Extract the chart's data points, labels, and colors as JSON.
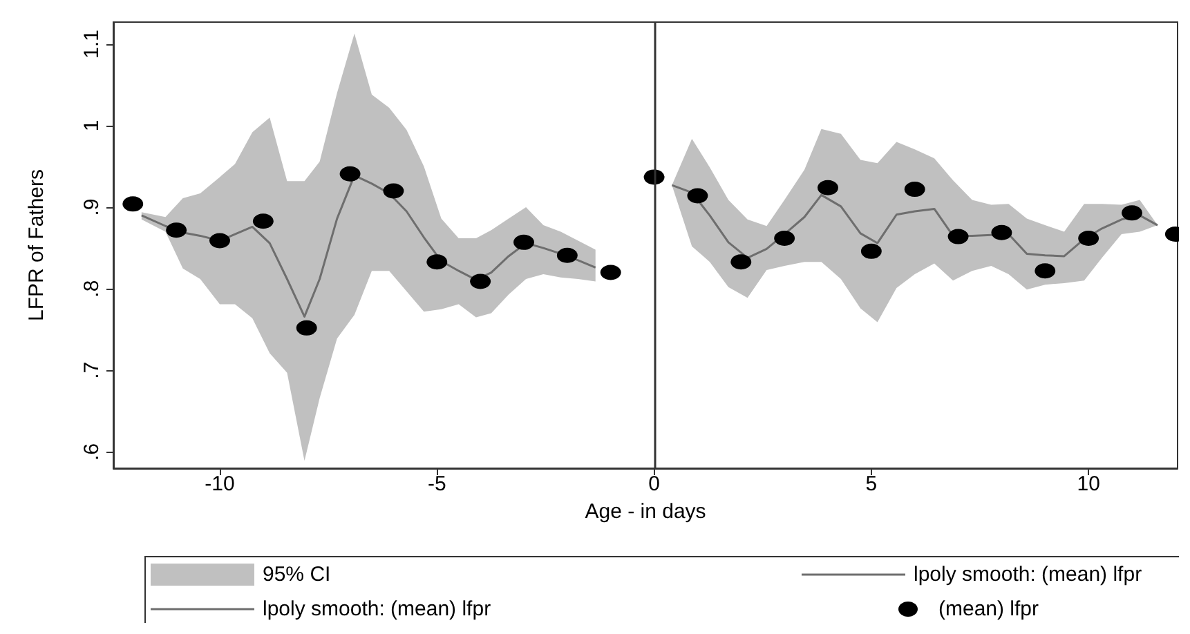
{
  "chart_data": {
    "type": "line",
    "xlabel": "Age - in days",
    "ylabel": "LFPR of Fathers",
    "xlim": [
      -12.45,
      12.05
    ],
    "xticks": [
      -10,
      -5,
      0,
      5,
      10
    ],
    "ylim": [
      0.58,
      1.127
    ],
    "yticks": [
      {
        "value": 0.6,
        "label": ".6"
      },
      {
        "value": 0.7,
        "label": ".7"
      },
      {
        "value": 0.8,
        "label": ".8"
      },
      {
        "value": 0.9,
        "label": ".9"
      },
      {
        "value": 1,
        "label": "1"
      },
      {
        "value": 1.1,
        "label": "1.1"
      }
    ],
    "grid": false,
    "legend": "bottom",
    "annotations": [
      "95% CI"
    ],
    "ref_lines": [
      {
        "axis": "x",
        "value": 0,
        "color": "#333333"
      }
    ],
    "series": [
      {
        "name": "lpoly smooth: (mean) lfpr",
        "color": "#6e6e6e",
        "x": [
          -11.8,
          -11.25,
          -10.85,
          -10.45,
          -10,
          -9.65,
          -9.25,
          -8.85,
          -8.45,
          -8.05,
          -7.7,
          -7.3,
          -6.9,
          -6.5,
          -6.1,
          -5.7,
          -5.3,
          -4.9,
          -4.5,
          -4.1,
          -3.75,
          -3.35,
          -2.95,
          -2.55,
          -2.15,
          -1.75,
          -1.35
        ],
        "values": [
          0.89,
          0.877,
          0.869,
          0.865,
          0.859,
          0.867,
          0.876,
          0.856,
          0.812,
          0.766,
          0.812,
          0.886,
          0.939,
          0.929,
          0.917,
          0.895,
          0.863,
          0.834,
          0.822,
          0.811,
          0.82,
          0.84,
          0.856,
          0.85,
          0.843,
          0.835,
          0.826
        ],
        "lower": [
          0.885,
          0.87,
          0.825,
          0.812,
          0.781,
          0.781,
          0.764,
          0.721,
          0.697,
          0.589,
          0.666,
          0.739,
          0.768,
          0.822,
          0.822,
          0.797,
          0.772,
          0.775,
          0.781,
          0.765,
          0.77,
          0.793,
          0.812,
          0.818,
          0.814,
          0.812,
          0.809
        ],
        "upper": [
          0.894,
          0.888,
          0.911,
          0.917,
          0.937,
          0.953,
          0.992,
          1.01,
          0.932,
          0.932,
          0.956,
          1.04,
          1.113,
          1.038,
          1.022,
          0.995,
          0.95,
          0.886,
          0.862,
          0.862,
          0.872,
          0.886,
          0.9,
          0.878,
          0.87,
          0.859,
          0.848
        ]
      },
      {
        "name": "lpoly smooth: (mean) lfpr",
        "color": "#6e6e6e",
        "x": [
          0.41,
          0.87,
          1.28,
          1.71,
          2.15,
          2.59,
          3.0,
          3.46,
          3.85,
          4.3,
          4.75,
          5.14,
          5.58,
          6.0,
          6.45,
          6.88,
          7.32,
          7.76,
          8.16,
          8.58,
          9.0,
          9.44,
          9.9,
          10.31,
          10.76,
          11.18,
          11.59
        ],
        "values": [
          0.927,
          0.918,
          0.89,
          0.857,
          0.838,
          0.849,
          0.867,
          0.888,
          0.915,
          0.901,
          0.868,
          0.856,
          0.891,
          0.895,
          0.898,
          0.865,
          0.865,
          0.866,
          0.867,
          0.843,
          0.841,
          0.84,
          0.861,
          0.874,
          0.885,
          0.89,
          0.878
        ],
        "lower": [
          0.927,
          0.852,
          0.833,
          0.802,
          0.789,
          0.823,
          0.828,
          0.833,
          0.833,
          0.812,
          0.776,
          0.759,
          0.801,
          0.818,
          0.831,
          0.81,
          0.822,
          0.828,
          0.818,
          0.799,
          0.805,
          0.807,
          0.81,
          0.838,
          0.867,
          0.87,
          0.878
        ],
        "upper": [
          0.927,
          0.984,
          0.949,
          0.909,
          0.885,
          0.877,
          0.909,
          0.946,
          0.996,
          0.99,
          0.958,
          0.954,
          0.98,
          0.971,
          0.96,
          0.933,
          0.909,
          0.903,
          0.904,
          0.886,
          0.878,
          0.87,
          0.904,
          0.904,
          0.903,
          0.909,
          0.878
        ]
      },
      {
        "name": "(mean) lfpr",
        "type": "scatter",
        "color": "#000000",
        "marker": "circle",
        "x": [
          -12,
          -11,
          -10,
          -9,
          -8,
          -7,
          -6,
          -5,
          -4,
          -3,
          -2,
          -1,
          0,
          1,
          2,
          3,
          4,
          5,
          6,
          7,
          8,
          9,
          10,
          11,
          12
        ],
        "values": [
          0.904,
          0.872,
          0.859,
          0.883,
          0.752,
          0.941,
          0.92,
          0.833,
          0.809,
          0.857,
          0.841,
          0.82,
          0.937,
          0.914,
          0.833,
          0.862,
          0.924,
          0.846,
          0.922,
          0.864,
          0.869,
          0.822,
          0.862,
          0.893,
          0.867
        ]
      }
    ]
  }
}
